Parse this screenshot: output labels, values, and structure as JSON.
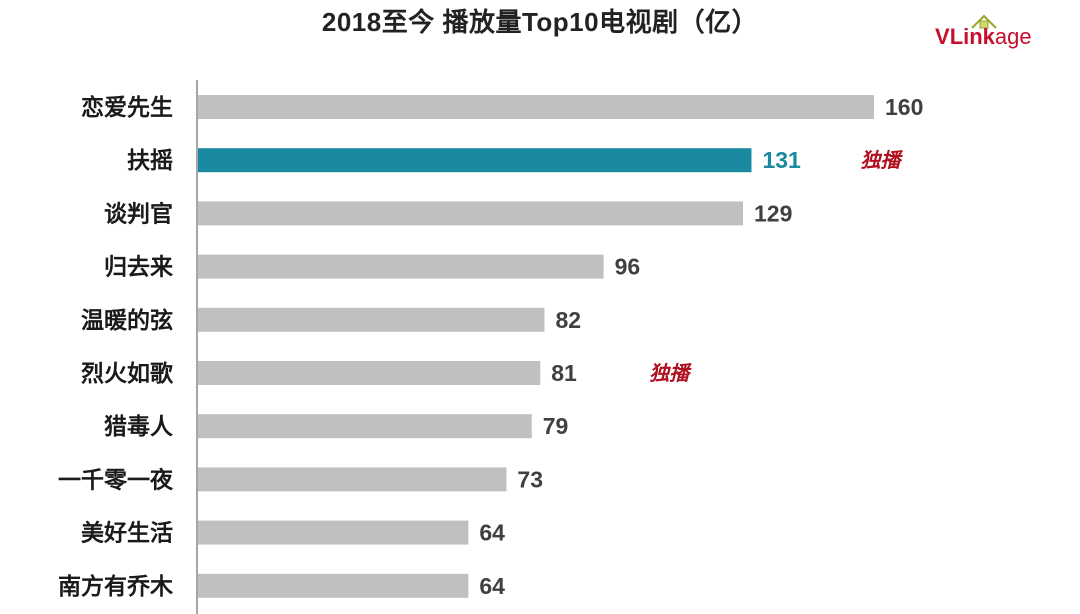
{
  "chart_data": {
    "type": "bar",
    "orientation": "horizontal",
    "title": "2018至今 播放量Top10电视剧（亿）",
    "categories": [
      "恋爱先生",
      "扶摇",
      "谈判官",
      "归去来",
      "温暖的弦",
      "烈火如歌",
      "猎毒人",
      "一千零一夜",
      "美好生活",
      "南方有乔木"
    ],
    "values": [
      160,
      131,
      129,
      96,
      82,
      81,
      79,
      73,
      64,
      64
    ],
    "highlight_index": 1,
    "annotations": [
      {
        "category_index": 1,
        "text": "独播"
      },
      {
        "category_index": 5,
        "text": "独播"
      }
    ],
    "xlim": [
      0,
      160
    ],
    "xlabel": "",
    "ylabel": "",
    "grid": false,
    "legend": "none"
  },
  "colors": {
    "bar": "#c0c0c0",
    "highlight_bar": "#1a8aa0",
    "axis": "#888888",
    "note": "#b01020"
  },
  "logo": {
    "prefix": "V",
    "middle": "Link",
    "suffix": "age"
  }
}
